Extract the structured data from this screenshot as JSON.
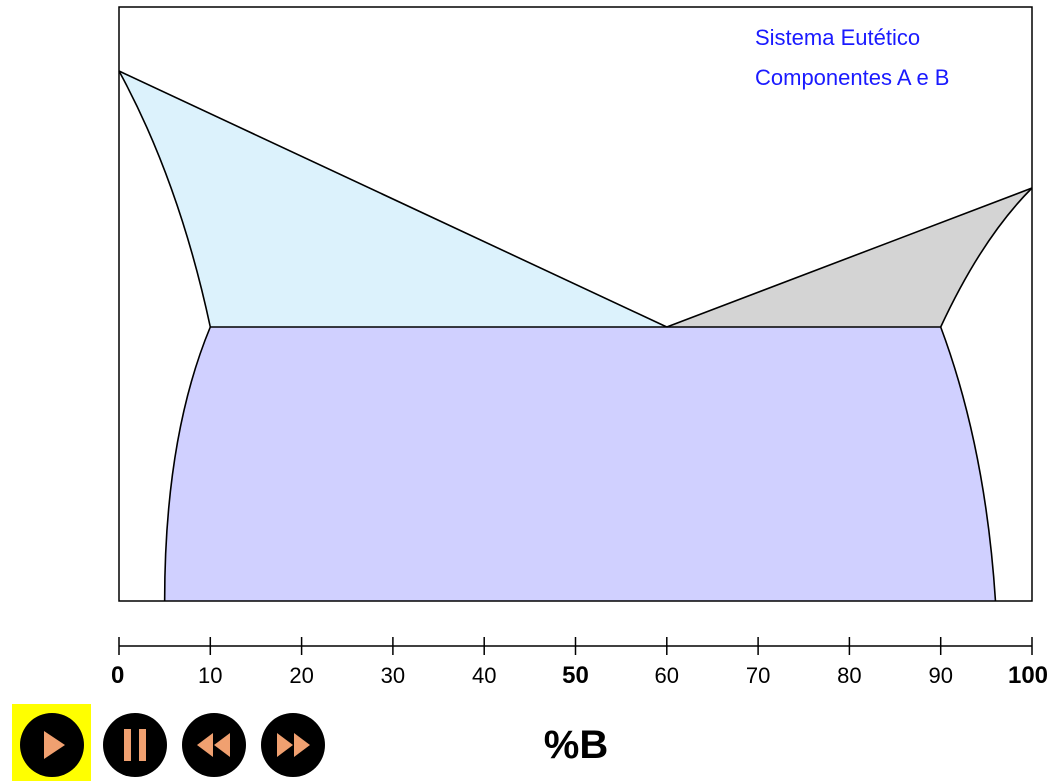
{
  "title": {
    "line1": "Sistema Eutético",
    "line2": "Componentes A e B",
    "color": "#1a1aff"
  },
  "x_axis": {
    "title": "%B",
    "range": [
      0,
      100
    ],
    "ticks": [
      {
        "value": 0,
        "label": "0",
        "major": true
      },
      {
        "value": 10,
        "label": "10",
        "major": false
      },
      {
        "value": 20,
        "label": "20",
        "major": false
      },
      {
        "value": 30,
        "label": "30",
        "major": false
      },
      {
        "value": 40,
        "label": "40",
        "major": false
      },
      {
        "value": 50,
        "label": "50",
        "major": true
      },
      {
        "value": 60,
        "label": "60",
        "major": false
      },
      {
        "value": 70,
        "label": "70",
        "major": false
      },
      {
        "value": 80,
        "label": "80",
        "major": false
      },
      {
        "value": 90,
        "label": "90",
        "major": false
      },
      {
        "value": 100,
        "label": "100",
        "major": true
      }
    ]
  },
  "phase_diagram": {
    "type": "binary eutectic",
    "eutectic_composition": 60,
    "alpha_max_solubility": 10,
    "beta_max_solubility": 90,
    "alpha_solvus_bottom": 5,
    "beta_solvus_bottom": 96,
    "region_colors": {
      "liquid_alpha": "#dcf2fc",
      "liquid_beta": "#d4d4d4",
      "alpha_beta": "#d0d0ff",
      "background": "#ffffff"
    }
  },
  "controls": [
    {
      "name": "play",
      "icon": "play-icon",
      "active": true
    },
    {
      "name": "pause",
      "icon": "pause-icon",
      "active": false
    },
    {
      "name": "rewind",
      "icon": "rewind-icon",
      "active": false
    },
    {
      "name": "fast-forward",
      "icon": "fast-forward-icon",
      "active": false
    }
  ],
  "control_style": {
    "highlight": "#ffff00",
    "button": "#000000",
    "glyph": "#f0a070"
  }
}
